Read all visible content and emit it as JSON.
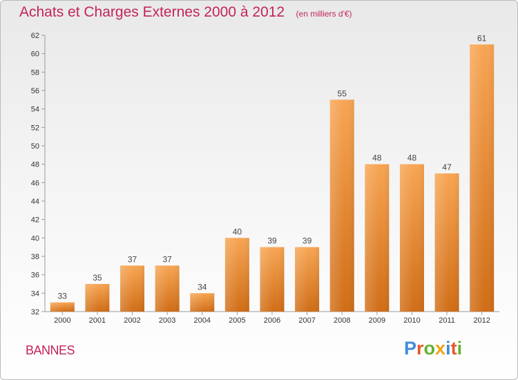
{
  "chart_data": {
    "type": "bar",
    "title": "Achats et Charges Externes 2000 à 2012",
    "subtitle": "(en milliers d'€)",
    "categories": [
      "2000",
      "2001",
      "2002",
      "2003",
      "2004",
      "2005",
      "2006",
      "2007",
      "2008",
      "2009",
      "2010",
      "2011",
      "2012"
    ],
    "values": [
      33,
      35,
      37,
      37,
      34,
      40,
      39,
      39,
      55,
      48,
      48,
      47,
      61
    ],
    "ylim": [
      32,
      62
    ],
    "yticks": [
      32,
      34,
      36,
      38,
      40,
      42,
      44,
      46,
      48,
      50,
      52,
      54,
      56,
      58,
      60,
      62
    ],
    "grid": false,
    "legend": "none",
    "bar_color_top": "#f7a553",
    "bar_color_bottom": "#d06d16"
  },
  "footer": {
    "commune": "BANNES",
    "logo": "Proxiti",
    "logo_colors": [
      "#3f8dd9",
      "#e8582a",
      "#63b22e",
      "#f2a31b",
      "#3f8dd9",
      "#e8582a",
      "#63b22e"
    ]
  }
}
